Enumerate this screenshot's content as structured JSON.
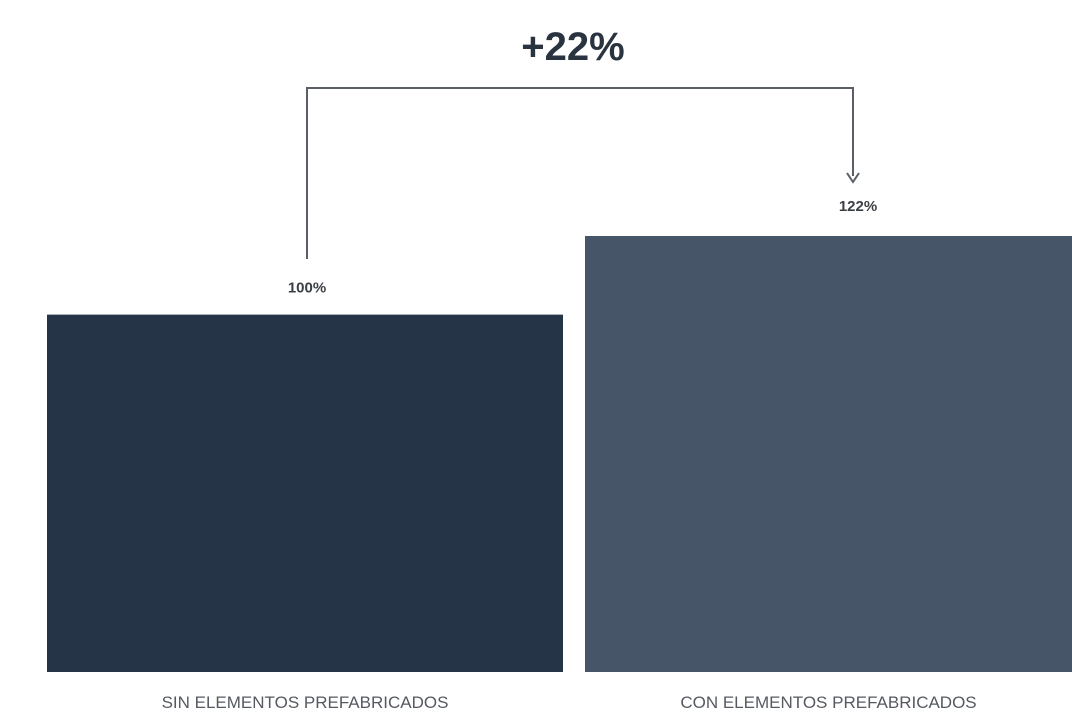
{
  "chart_data": {
    "type": "bar",
    "title": "",
    "xlabel": "",
    "ylabel": "",
    "categories": [
      "SIN ELEMENTOS PREFABRICADOS",
      "CON ELEMENTOS PREFABRICADOS"
    ],
    "values": [
      100,
      122
    ],
    "value_labels": [
      "100%",
      "122%"
    ],
    "unit": "%",
    "ylim": [
      0,
      122
    ],
    "grid": false,
    "legend": "none",
    "colors": [
      "#253446",
      "#465567"
    ],
    "annotation": {
      "text": "+22%",
      "type": "bracket-arrow",
      "from_category": 0,
      "to_category": 1
    }
  }
}
